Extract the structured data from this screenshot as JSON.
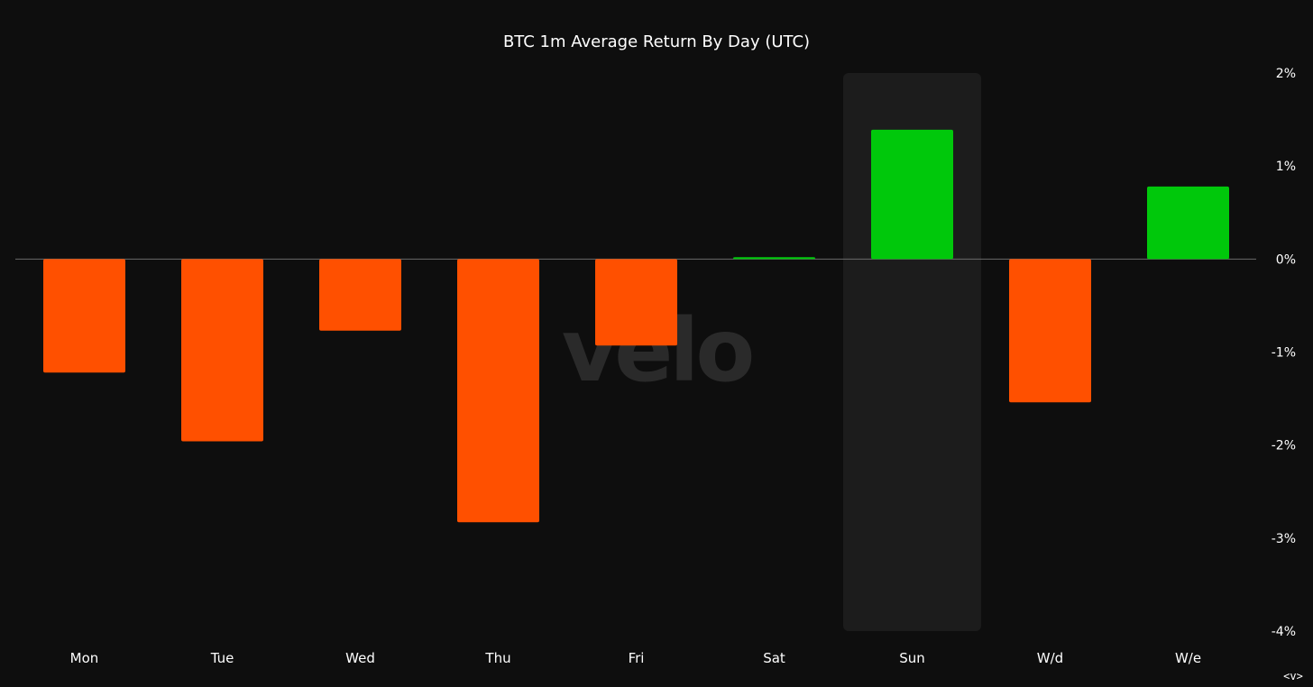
{
  "watermark": "velo",
  "nav_control": "<v>",
  "colors": {
    "background": "#0e0e0e",
    "negative": "#ff5000",
    "positive": "#00c80b",
    "highlight": "#1c1c1c",
    "zero_line": "#6a6a6a",
    "text": "#ffffff"
  },
  "chart_data": {
    "type": "bar",
    "title": "BTC 1m Average Return By Day (UTC)",
    "xlabel": "",
    "ylabel": "",
    "categories": [
      "Mon",
      "Tue",
      "Wed",
      "Thu",
      "Fri",
      "Sat",
      "Sun",
      "W/d",
      "W/e"
    ],
    "values": [
      -1.22,
      -1.96,
      -0.77,
      -2.83,
      -0.93,
      0.02,
      1.39,
      -1.54,
      0.78
    ],
    "ylim": [
      -4,
      2
    ],
    "yticks": [
      2,
      1,
      0,
      -1,
      -2,
      -3,
      -4
    ],
    "ytick_labels": [
      "2%",
      "1%",
      "0%",
      "-1%",
      "-2%",
      "-3%",
      "-4%"
    ],
    "y_axis_position": "right",
    "highlighted_category": "Sun",
    "grid": false,
    "legend": "none"
  }
}
